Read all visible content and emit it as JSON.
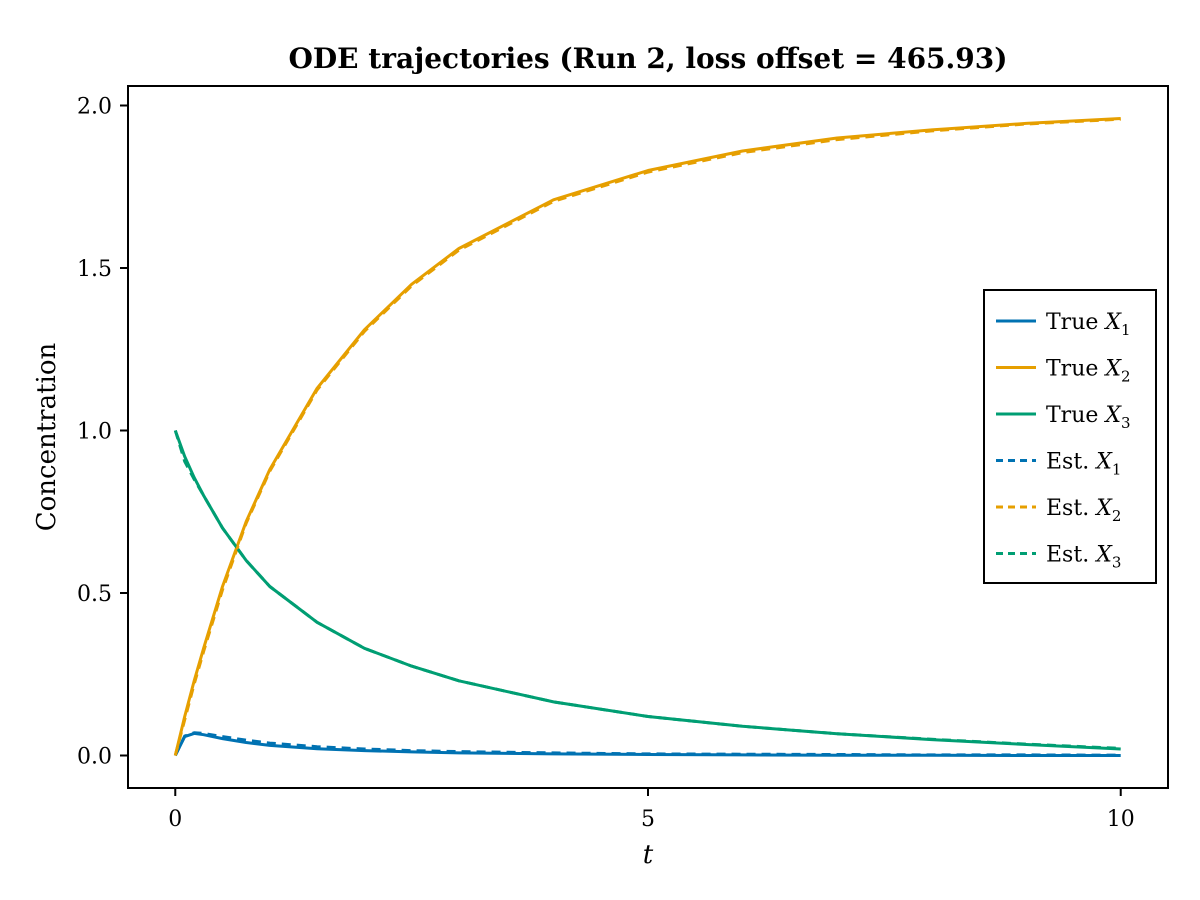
{
  "chart_data": {
    "type": "line",
    "title": "ODE trajectories (Run 2, loss offset = 465.93)",
    "xlabel": "t",
    "ylabel": "Concentration",
    "xlim": [
      -0.5,
      10.5
    ],
    "ylim": [
      -0.1,
      2.06
    ],
    "xticks": [
      0,
      5,
      10
    ],
    "xtick_labels": [
      "0",
      "5",
      "10"
    ],
    "yticks": [
      0.0,
      0.5,
      1.0,
      1.5,
      2.0
    ],
    "ytick_labels": [
      "0.0",
      "0.5",
      "1.0",
      "1.5",
      "2.0"
    ],
    "grid": false,
    "legend_position": "right",
    "x": [
      0,
      0.1,
      0.2,
      0.3,
      0.5,
      0.75,
      1,
      1.5,
      2,
      2.5,
      3,
      4,
      5,
      6,
      7,
      8,
      9,
      10
    ],
    "series": [
      {
        "name": "True X1",
        "sub": "1",
        "label_prefix": "True X",
        "style": "solid",
        "color": "#0072B2",
        "values": [
          0.0,
          0.058,
          0.068,
          0.064,
          0.052,
          0.04,
          0.031,
          0.021,
          0.015,
          0.011,
          0.008,
          0.005,
          0.003,
          0.002,
          0.001,
          0.001,
          0.0,
          0.0
        ]
      },
      {
        "name": "True X2",
        "sub": "2",
        "label_prefix": "True X",
        "style": "solid",
        "color": "#E69F00",
        "values": [
          0.0,
          0.12,
          0.23,
          0.33,
          0.52,
          0.72,
          0.88,
          1.13,
          1.31,
          1.45,
          1.56,
          1.71,
          1.8,
          1.86,
          1.9,
          1.925,
          1.945,
          1.96
        ]
      },
      {
        "name": "True X3",
        "sub": "3",
        "label_prefix": "True X",
        "style": "solid",
        "color": "#009E73",
        "values": [
          1.0,
          0.92,
          0.855,
          0.8,
          0.7,
          0.6,
          0.52,
          0.41,
          0.33,
          0.275,
          0.23,
          0.165,
          0.12,
          0.09,
          0.067,
          0.049,
          0.034,
          0.02
        ]
      },
      {
        "name": "Est. X1",
        "sub": "1",
        "label_prefix": "Est. X",
        "style": "dashed",
        "color": "#0072B2",
        "values": [
          0.0,
          0.06,
          0.07,
          0.068,
          0.058,
          0.047,
          0.038,
          0.027,
          0.02,
          0.015,
          0.012,
          0.008,
          0.005,
          0.004,
          0.003,
          0.002,
          0.002,
          0.001
        ]
      },
      {
        "name": "Est. X2",
        "sub": "2",
        "label_prefix": "Est. X",
        "style": "dashed",
        "color": "#E69F00",
        "values": [
          0.0,
          0.11,
          0.22,
          0.32,
          0.51,
          0.715,
          0.875,
          1.125,
          1.305,
          1.445,
          1.555,
          1.705,
          1.795,
          1.855,
          1.895,
          1.922,
          1.943,
          1.958
        ]
      },
      {
        "name": "Est. X3",
        "sub": "3",
        "label_prefix": "Est. X",
        "style": "dashed",
        "color": "#009E73",
        "values": [
          1.0,
          0.905,
          0.85,
          0.8,
          0.7,
          0.6,
          0.52,
          0.41,
          0.33,
          0.275,
          0.23,
          0.165,
          0.12,
          0.09,
          0.067,
          0.05,
          0.035,
          0.022
        ]
      }
    ]
  }
}
